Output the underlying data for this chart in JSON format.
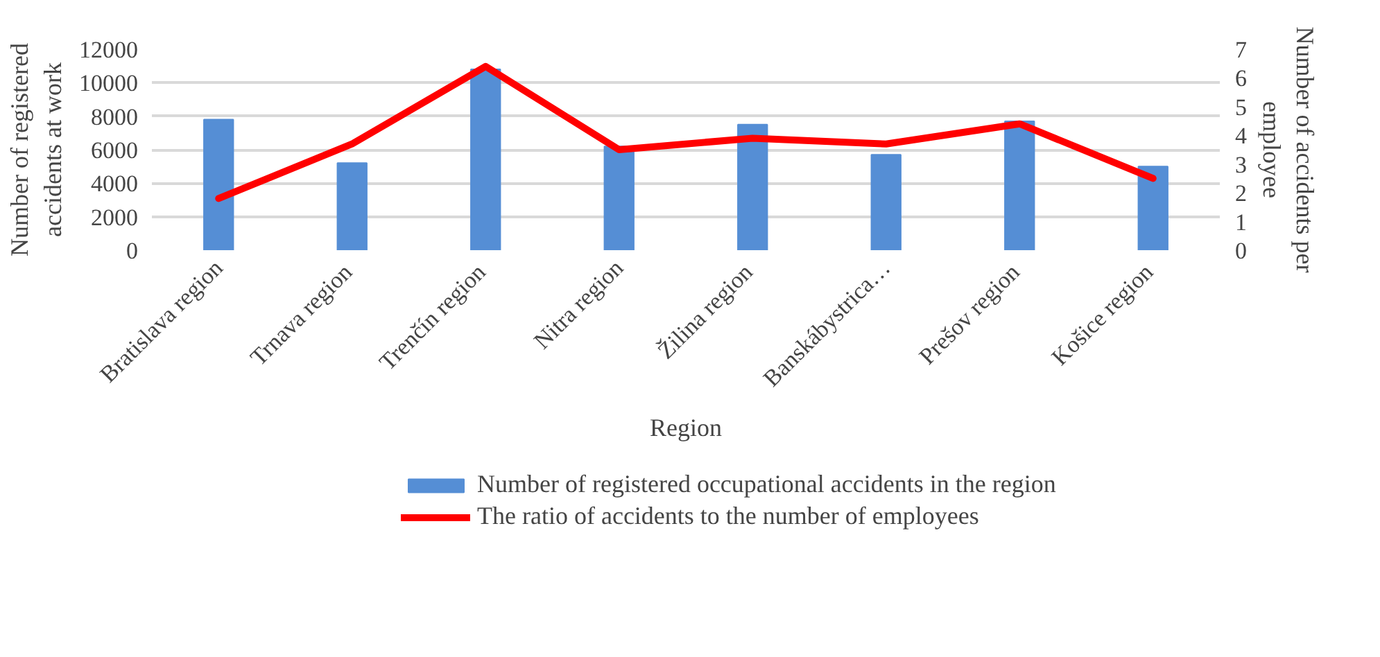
{
  "chart_data": {
    "type": "bar",
    "categories": [
      "Bratislava region",
      "Trnava  region",
      "Trenčín  region",
      "Nitra region",
      "Žilina  region",
      "Banskábystrica…",
      "Prešov  region",
      "Košice  region"
    ],
    "xlabel": "Region",
    "ylabel": "Number of registered accidents at work",
    "y2label": "Number of accidents per employee",
    "series": [
      {
        "name": "Number of registered occupational accidents in the region",
        "color": "#558ed5",
        "values": [
          7800,
          5200,
          10800,
          6200,
          7500,
          5700,
          7700,
          5000
        ]
      },
      {
        "name": "The ratio of accidents to the number of employees",
        "type": "line",
        "axis": "y2",
        "color": "#ff0000",
        "values": [
          1.8,
          3.7,
          6.4,
          3.5,
          3.9,
          3.7,
          4.4,
          2.5
        ]
      }
    ],
    "ylim": [
      0,
      12000
    ],
    "yticks": [
      0,
      2000,
      4000,
      6000,
      8000,
      10000,
      12000
    ],
    "y2lim": [
      0,
      7
    ],
    "y2ticks": [
      0,
      1,
      2,
      3,
      4,
      5,
      6,
      7
    ],
    "grid": "y",
    "legend": "bottom"
  }
}
